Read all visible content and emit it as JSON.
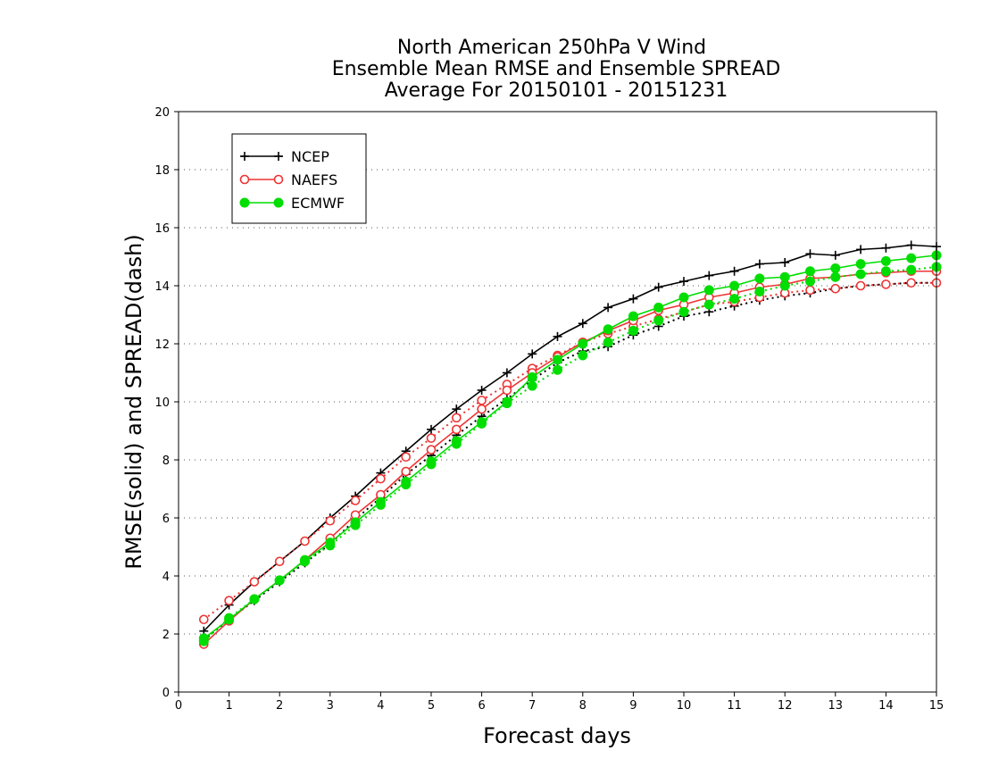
{
  "chart_data": {
    "type": "line",
    "title_lines": [
      "North American 250hPa V Wind",
      "Ensemble Mean RMSE and Ensemble SPREAD",
      "Average For 20150101 - 20151231"
    ],
    "xlabel": "Forecast days",
    "ylabel": "RMSE(solid) and SPREAD(dash)",
    "xlim": [
      0,
      15
    ],
    "ylim": [
      0,
      20
    ],
    "xticks": [
      0,
      1,
      2,
      3,
      4,
      5,
      6,
      7,
      8,
      9,
      10,
      11,
      12,
      13,
      14,
      15
    ],
    "yticks": [
      0,
      2,
      4,
      6,
      8,
      10,
      12,
      14,
      16,
      18,
      20
    ],
    "grid": "horizontal dotted",
    "legend_position": "top-left",
    "x": [
      0.5,
      1,
      1.5,
      2,
      2.5,
      3,
      3.5,
      4,
      4.5,
      5,
      5.5,
      6,
      6.5,
      7,
      7.5,
      8,
      8.5,
      9,
      9.5,
      10,
      10.5,
      11,
      11.5,
      12,
      12.5,
      13,
      13.5,
      14,
      14.5,
      15
    ],
    "series": [
      {
        "name": "NCEP",
        "color": "#000000",
        "marker": "plus",
        "rmse": [
          2.1,
          3.0,
          3.8,
          4.5,
          5.2,
          6.0,
          6.75,
          7.55,
          8.3,
          9.05,
          9.75,
          10.4,
          11.0,
          11.65,
          12.25,
          12.7,
          13.25,
          13.55,
          13.95,
          14.15,
          14.35,
          14.5,
          14.75,
          14.8,
          15.1,
          15.05,
          15.25,
          15.3,
          15.4,
          15.35
        ],
        "spread": [
          1.8,
          2.5,
          3.15,
          3.8,
          4.45,
          5.1,
          5.95,
          6.7,
          7.5,
          8.15,
          8.85,
          9.5,
          10.1,
          10.75,
          11.35,
          11.75,
          11.9,
          12.3,
          12.6,
          12.95,
          13.1,
          13.3,
          13.5,
          13.65,
          13.75,
          13.9,
          14.0,
          14.05,
          14.1,
          14.1
        ]
      },
      {
        "name": "NAEFS",
        "color": "#ee3333",
        "marker": "open-circle",
        "rmse": [
          1.65,
          2.45,
          3.2,
          3.85,
          4.55,
          5.3,
          6.1,
          6.8,
          7.6,
          8.35,
          9.05,
          9.75,
          10.4,
          11.0,
          11.55,
          12.05,
          12.45,
          12.8,
          13.15,
          13.35,
          13.6,
          13.75,
          13.95,
          14.05,
          14.25,
          14.3,
          14.4,
          14.45,
          14.5,
          14.5
        ],
        "spread": [
          2.5,
          3.15,
          3.8,
          4.5,
          5.2,
          5.9,
          6.6,
          7.35,
          8.1,
          8.75,
          9.45,
          10.05,
          10.6,
          11.15,
          11.6,
          12.05,
          12.35,
          12.6,
          12.85,
          13.1,
          13.35,
          13.45,
          13.6,
          13.75,
          13.85,
          13.9,
          14.0,
          14.05,
          14.1,
          14.1
        ]
      },
      {
        "name": "ECMWF",
        "color": "#00dd00",
        "marker": "filled-circle",
        "rmse": [
          1.85,
          2.5,
          3.2,
          3.85,
          4.55,
          5.15,
          5.85,
          6.55,
          7.25,
          7.95,
          8.65,
          9.3,
          10.0,
          10.85,
          11.45,
          12.0,
          12.5,
          12.95,
          13.25,
          13.6,
          13.85,
          14.0,
          14.25,
          14.3,
          14.5,
          14.6,
          14.75,
          14.85,
          14.95,
          15.05
        ],
        "spread": [
          1.75,
          2.55,
          3.2,
          3.85,
          4.5,
          5.05,
          5.75,
          6.45,
          7.15,
          7.85,
          8.55,
          9.25,
          9.95,
          10.55,
          11.1,
          11.6,
          12.05,
          12.45,
          12.8,
          13.1,
          13.35,
          13.55,
          13.8,
          14.0,
          14.15,
          14.3,
          14.4,
          14.5,
          14.55,
          14.65
        ]
      }
    ]
  }
}
